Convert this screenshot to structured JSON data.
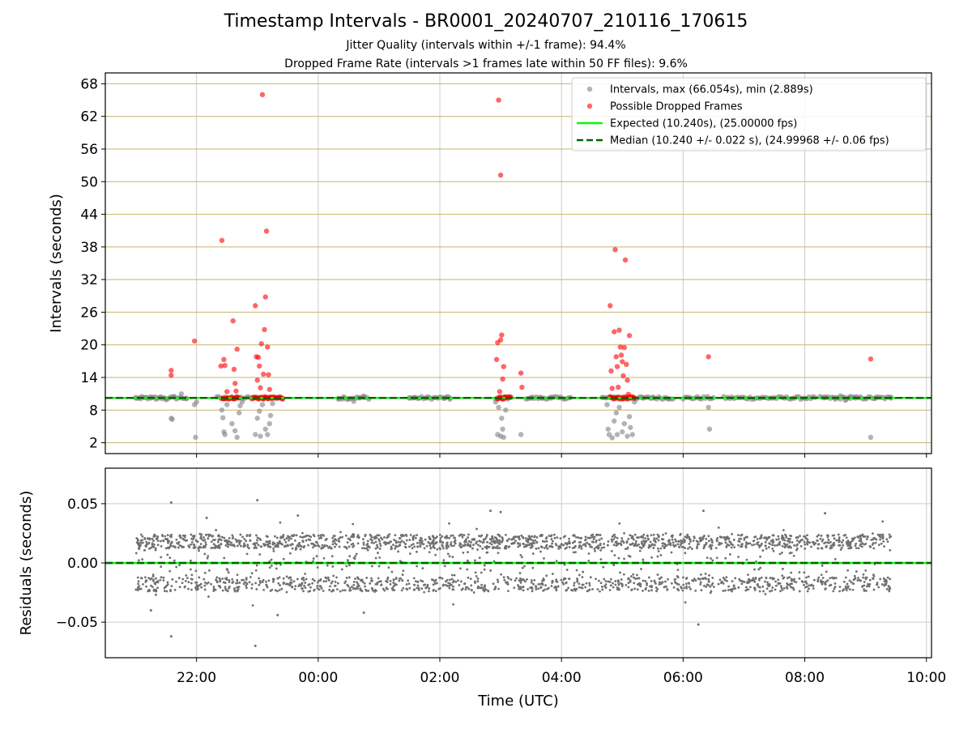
{
  "figure": {
    "title": "Timestamp Intervals - BR0001_20240707_210116_170615",
    "subtitle_1": "Jitter Quality (intervals within +/-1 frame): 94.4%",
    "subtitle_2": "Dropped Frame Rate (intervals >1 frames late within 50 FF files): 9.6%"
  },
  "colors": {
    "intervals": "#808080",
    "dropped": "#ff0000",
    "expected": "#00ff00",
    "median": "#006400",
    "hgrid": "#c8b46e",
    "vgrid": "#cccccc",
    "residuals": "#707070"
  },
  "chart_data": [
    {
      "type": "scatter",
      "ylabel": "Intervals (seconds)",
      "ylim": [
        0,
        70
      ],
      "yticks": [
        2,
        8,
        14,
        20,
        26,
        32,
        38,
        44,
        50,
        56,
        62,
        68
      ],
      "xlim": [
        "20:30",
        "10:05"
      ],
      "xticks": [
        "22:00",
        "00:00",
        "02:00",
        "04:00",
        "06:00",
        "08:00",
        "10:00"
      ],
      "grid": true,
      "legend_position": "upper-right",
      "legend": [
        "Intervals, max (66.054s), min (2.889s)",
        "Possible Dropped Frames",
        "Expected (10.240s), (25.00000 fps)",
        "Median (10.240 +/- 0.022 s), (24.99968 +/- 0.06 fps)"
      ],
      "expected_line": 10.24,
      "median_line": 10.24,
      "series": [
        {
          "name": "Intervals, max (66.054s), min (2.889s)",
          "points": [
            {
              "x": "21:00",
              "y": 10.2
            },
            {
              "x": "21:05",
              "y": 10.1
            },
            {
              "x": "21:10",
              "y": 10.3
            },
            {
              "x": "21:15",
              "y": 10.2
            },
            {
              "x": "21:20",
              "y": 10.0
            },
            {
              "x": "21:25",
              "y": 10.4
            },
            {
              "x": "21:30",
              "y": 9.9
            },
            {
              "x": "21:35",
              "y": 6.5
            },
            {
              "x": "21:36",
              "y": 6.3
            },
            {
              "x": "21:38",
              "y": 10.5
            },
            {
              "x": "21:45",
              "y": 11.0
            },
            {
              "x": "21:50",
              "y": 10.1
            },
            {
              "x": "21:59",
              "y": 3.0
            },
            {
              "x": "21:58",
              "y": 9.0
            },
            {
              "x": "22:00",
              "y": 9.5
            },
            {
              "x": "22:25",
              "y": 8.0
            },
            {
              "x": "22:26",
              "y": 6.6
            },
            {
              "x": "22:27",
              "y": 4.0
            },
            {
              "x": "22:28",
              "y": 3.5
            },
            {
              "x": "22:30",
              "y": 9.0
            },
            {
              "x": "22:35",
              "y": 5.5
            },
            {
              "x": "22:38",
              "y": 4.2
            },
            {
              "x": "22:40",
              "y": 3.0
            },
            {
              "x": "22:42",
              "y": 7.5
            },
            {
              "x": "22:43",
              "y": 8.8
            },
            {
              "x": "22:45",
              "y": 9.5
            },
            {
              "x": "22:58",
              "y": 3.5
            },
            {
              "x": "23:00",
              "y": 6.5
            },
            {
              "x": "23:02",
              "y": 7.8
            },
            {
              "x": "23:03",
              "y": 3.2
            },
            {
              "x": "23:05",
              "y": 9.0
            },
            {
              "x": "23:08",
              "y": 4.5
            },
            {
              "x": "23:10",
              "y": 3.5
            },
            {
              "x": "23:12",
              "y": 5.5
            },
            {
              "x": "23:13",
              "y": 7.0
            },
            {
              "x": "23:15",
              "y": 9.2
            },
            {
              "x": "23:20",
              "y": 10.2
            },
            {
              "x": "23:25",
              "y": 10.0
            },
            {
              "x": "00:20",
              "y": 10.2
            },
            {
              "x": "00:25",
              "y": 10.4
            },
            {
              "x": "00:30",
              "y": 10.0
            },
            {
              "x": "00:35",
              "y": 9.6
            },
            {
              "x": "00:40",
              "y": 10.3
            },
            {
              "x": "00:45",
              "y": 10.6
            },
            {
              "x": "01:30",
              "y": 10.2
            },
            {
              "x": "01:35",
              "y": 10.3
            },
            {
              "x": "01:40",
              "y": 10.2
            },
            {
              "x": "01:48",
              "y": 10.2
            },
            {
              "x": "02:05",
              "y": 10.2
            },
            {
              "x": "02:10",
              "y": 10.0
            },
            {
              "x": "02:55",
              "y": 9.5
            },
            {
              "x": "02:57",
              "y": 3.5
            },
            {
              "x": "02:58",
              "y": 8.5
            },
            {
              "x": "03:00",
              "y": 3.2
            },
            {
              "x": "03:01",
              "y": 6.5
            },
            {
              "x": "03:02",
              "y": 4.5
            },
            {
              "x": "03:03",
              "y": 3.0
            },
            {
              "x": "03:05",
              "y": 8.0
            },
            {
              "x": "03:20",
              "y": 3.5
            },
            {
              "x": "03:30",
              "y": 10.2
            },
            {
              "x": "03:40",
              "y": 10.2
            },
            {
              "x": "03:50",
              "y": 10.2
            },
            {
              "x": "04:45",
              "y": 9.0
            },
            {
              "x": "04:46",
              "y": 4.5
            },
            {
              "x": "04:47",
              "y": 3.5
            },
            {
              "x": "04:50",
              "y": 2.9
            },
            {
              "x": "04:52",
              "y": 6.0
            },
            {
              "x": "04:54",
              "y": 7.5
            },
            {
              "x": "04:55",
              "y": 3.5
            },
            {
              "x": "04:57",
              "y": 8.5
            },
            {
              "x": "05:00",
              "y": 4.0
            },
            {
              "x": "05:02",
              "y": 5.5
            },
            {
              "x": "05:05",
              "y": 3.2
            },
            {
              "x": "05:07",
              "y": 6.8
            },
            {
              "x": "05:08",
              "y": 4.8
            },
            {
              "x": "05:10",
              "y": 3.5
            },
            {
              "x": "05:12",
              "y": 9.5
            },
            {
              "x": "05:20",
              "y": 10.2
            },
            {
              "x": "05:30",
              "y": 10.4
            },
            {
              "x": "05:45",
              "y": 10.1
            },
            {
              "x": "06:25",
              "y": 8.5
            },
            {
              "x": "06:26",
              "y": 4.5
            },
            {
              "x": "08:20",
              "y": 10.4
            },
            {
              "x": "08:30",
              "y": 10.0
            },
            {
              "x": "08:35",
              "y": 10.6
            },
            {
              "x": "08:40",
              "y": 9.8
            },
            {
              "x": "08:45",
              "y": 10.5
            },
            {
              "x": "08:50",
              "y": 10.2
            },
            {
              "x": "09:05",
              "y": 3.0
            },
            {
              "x": "09:10",
              "y": 10.2
            },
            {
              "x": "09:25",
              "y": 10.2
            }
          ]
        },
        {
          "name": "Possible Dropped Frames",
          "points": [
            {
              "x": "21:35",
              "y": 15.3
            },
            {
              "x": "21:35",
              "y": 14.4
            },
            {
              "x": "21:58",
              "y": 20.7
            },
            {
              "x": "22:25",
              "y": 39.2
            },
            {
              "x": "22:24",
              "y": 16.1
            },
            {
              "x": "22:27",
              "y": 17.3
            },
            {
              "x": "22:28",
              "y": 16.2
            },
            {
              "x": "22:30",
              "y": 11.4
            },
            {
              "x": "22:36",
              "y": 24.4
            },
            {
              "x": "22:37",
              "y": 15.5
            },
            {
              "x": "22:38",
              "y": 12.9
            },
            {
              "x": "22:39",
              "y": 11.5
            },
            {
              "x": "22:40",
              "y": 19.2
            },
            {
              "x": "22:58",
              "y": 27.2
            },
            {
              "x": "22:59",
              "y": 17.8
            },
            {
              "x": "23:00",
              "y": 13.5
            },
            {
              "x": "23:01",
              "y": 17.7
            },
            {
              "x": "23:02",
              "y": 16.1
            },
            {
              "x": "23:03",
              "y": 12.1
            },
            {
              "x": "23:04",
              "y": 20.2
            },
            {
              "x": "23:05",
              "y": 66.0
            },
            {
              "x": "23:06",
              "y": 14.6
            },
            {
              "x": "23:07",
              "y": 22.8
            },
            {
              "x": "23:08",
              "y": 28.8
            },
            {
              "x": "23:09",
              "y": 40.9
            },
            {
              "x": "23:10",
              "y": 19.6
            },
            {
              "x": "23:11",
              "y": 14.5
            },
            {
              "x": "23:12",
              "y": 11.8
            },
            {
              "x": "02:56",
              "y": 17.3
            },
            {
              "x": "02:57",
              "y": 20.4
            },
            {
              "x": "02:58",
              "y": 65.0
            },
            {
              "x": "02:59",
              "y": 11.4
            },
            {
              "x": "03:00",
              "y": 51.2
            },
            {
              "x": "03:01",
              "y": 21.8
            },
            {
              "x": "03:02",
              "y": 13.7
            },
            {
              "x": "03:03",
              "y": 16.0
            },
            {
              "x": "03:00",
              "y": 20.9
            },
            {
              "x": "03:20",
              "y": 14.8
            },
            {
              "x": "03:21",
              "y": 12.2
            },
            {
              "x": "04:48",
              "y": 27.2
            },
            {
              "x": "04:49",
              "y": 15.2
            },
            {
              "x": "04:50",
              "y": 12.0
            },
            {
              "x": "04:52",
              "y": 22.4
            },
            {
              "x": "04:53",
              "y": 37.5
            },
            {
              "x": "04:54",
              "y": 17.8
            },
            {
              "x": "04:55",
              "y": 16.0
            },
            {
              "x": "04:56",
              "y": 12.2
            },
            {
              "x": "04:57",
              "y": 22.7
            },
            {
              "x": "04:58",
              "y": 19.6
            },
            {
              "x": "04:59",
              "y": 18.1
            },
            {
              "x": "05:00",
              "y": 16.9
            },
            {
              "x": "05:01",
              "y": 14.3
            },
            {
              "x": "05:02",
              "y": 19.5
            },
            {
              "x": "05:03",
              "y": 35.6
            },
            {
              "x": "05:04",
              "y": 16.4
            },
            {
              "x": "05:05",
              "y": 13.5
            },
            {
              "x": "05:06",
              "y": 10.9
            },
            {
              "x": "05:07",
              "y": 21.7
            },
            {
              "x": "06:25",
              "y": 17.8
            },
            {
              "x": "09:05",
              "y": 17.4
            }
          ]
        }
      ]
    },
    {
      "type": "scatter",
      "ylabel": "Residuals (seconds)",
      "xlabel": "Time (UTC)",
      "ylim": [
        -0.08,
        0.08
      ],
      "yticks": [
        "0.05",
        "0.00",
        "−0.05"
      ],
      "ytick_values": [
        0.05,
        0.0,
        -0.05
      ],
      "xlim": [
        "20:30",
        "10:05"
      ],
      "xticks": [
        "22:00",
        "00:00",
        "02:00",
        "04:00",
        "06:00",
        "08:00",
        "10:00"
      ],
      "grid": true,
      "zero_line": 0.0,
      "series": [
        {
          "name": "",
          "x_range": [
            "21:00",
            "09:25"
          ],
          "band": [
            -0.02,
            0.02
          ],
          "outliers": [
            {
              "x": "21:35",
              "y": 0.051
            },
            {
              "x": "21:35",
              "y": -0.062
            },
            {
              "x": "22:10",
              "y": 0.038
            },
            {
              "x": "21:15",
              "y": -0.04
            },
            {
              "x": "23:00",
              "y": 0.053
            },
            {
              "x": "22:58",
              "y": -0.07
            },
            {
              "x": "23:40",
              "y": 0.04
            },
            {
              "x": "23:20",
              "y": -0.044
            },
            {
              "x": "00:45",
              "y": -0.042
            },
            {
              "x": "02:50",
              "y": 0.044
            },
            {
              "x": "03:00",
              "y": 0.043
            },
            {
              "x": "06:15",
              "y": -0.052
            },
            {
              "x": "06:20",
              "y": 0.044
            },
            {
              "x": "08:20",
              "y": 0.042
            }
          ]
        }
      ]
    }
  ]
}
